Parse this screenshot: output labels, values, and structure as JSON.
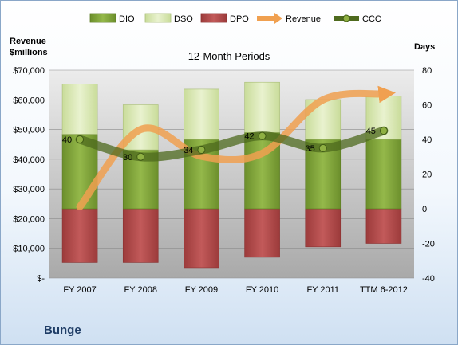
{
  "company": "Bunge",
  "chart_data": {
    "type": "bar",
    "title": "12-Month Periods",
    "left_axis_label": "Revenue\n$millions",
    "right_axis_label": "Days",
    "categories": [
      "FY 2007",
      "FY 2008",
      "FY 2009",
      "FY 2010",
      "FY 2011",
      "TTM 6-2012"
    ],
    "left_axis": {
      "min": 0,
      "max": 70000,
      "step": 10000,
      "tick_labels": [
        "$-",
        "$10,000",
        "$20,000",
        "$30,000",
        "$40,000",
        "$50,000",
        "$60,000",
        "$70,000"
      ]
    },
    "right_axis": {
      "min": -40,
      "max": 80,
      "step": 20,
      "tick_labels": [
        "-40",
        "-20",
        "0",
        "20",
        "40",
        "60",
        "80"
      ]
    },
    "legend_position": "top",
    "legend": [
      "DIO",
      "DSO",
      "DPO",
      "Revenue",
      "CCC"
    ],
    "series": [
      {
        "name": "DIO",
        "axis": "right",
        "kind": "stacked-bar",
        "color": "#7a9d35",
        "values": [
          43,
          34,
          40,
          44,
          40,
          40
        ]
      },
      {
        "name": "DSO",
        "axis": "right",
        "kind": "stacked-bar",
        "color": "#d6e6b0",
        "values": [
          29,
          26,
          29,
          29,
          23,
          25
        ]
      },
      {
        "name": "DPO",
        "axis": "right",
        "kind": "negative-bar",
        "color": "#b04a4a",
        "values": [
          -31,
          -31,
          -34,
          -28,
          -22,
          -20
        ]
      },
      {
        "name": "Revenue",
        "axis": "left",
        "kind": "line",
        "color": "#f0a050",
        "values": [
          24000,
          50000,
          41000,
          42000,
          60000,
          62000
        ]
      },
      {
        "name": "CCC",
        "axis": "right",
        "kind": "line",
        "color": "#4e6a1e",
        "values": [
          40,
          30,
          34,
          42,
          35,
          45
        ],
        "data_labels": [
          "40",
          "30",
          "34",
          "42",
          "35",
          "45"
        ]
      }
    ]
  }
}
